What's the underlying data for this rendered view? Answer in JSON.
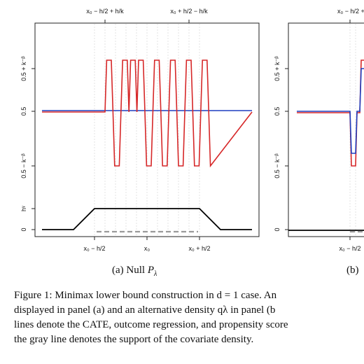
{
  "panel_a": {
    "top_ticks": [
      "x₀ − h/2 + h/k",
      "x₀ + h/2 − h/k"
    ],
    "y_ticks": [
      "0.5 + k⁻ᵝ",
      "0.5",
      "0.5 − k⁻ᵝ",
      "hᵞ",
      "0"
    ],
    "x_ticks": [
      "x₀ − h/2",
      "x₀",
      "x₀ + h/2"
    ],
    "caption_prefix": "(a) Null ",
    "caption_symbol": "P",
    "caption_sub": "λ"
  },
  "panel_b": {
    "top_ticks": [
      "x₀ − h/2 +"
    ],
    "y_ticks": [
      "0.5 + k⁻ᵝ",
      "0.5",
      "0.5 − k⁻ᵝ",
      "0"
    ],
    "x_ticks": [
      "x₀ − h/2"
    ],
    "caption_prefix": "(b)"
  },
  "caption": {
    "line1": "Figure 1: Minimax lower bound construction in d = 1 case.  An",
    "line2": "displayed in panel (a) and an alternative density qλ in panel (b",
    "line3": "lines denote the CATE, outcome regression, and propensity score",
    "line4": "the gray line denotes the support of the covariate density."
  },
  "colors": {
    "red": "#d62728",
    "blue": "#1f3fbf",
    "black": "#000000",
    "gray": "#9a9a9a",
    "grid": "#e3e3e3"
  },
  "chart_data": [
    {
      "type": "line",
      "panel": "a",
      "series": [
        {
          "color": "red",
          "x": [
            0,
            0.3,
            0.308,
            0.33,
            0.338,
            0.346,
            0.368,
            0.376,
            0.384,
            0.406,
            0.414,
            0.422,
            0.444,
            0.452,
            0.46,
            0.482,
            0.49,
            0.498,
            0.52,
            0.528,
            0.536,
            0.558,
            0.566,
            0.574,
            0.596,
            0.604,
            0.612,
            0.634,
            0.642,
            0.65,
            0.672,
            0.68,
            0.688,
            0.71,
            0.718,
            0.726,
            0.748,
            0.756,
            0.764,
            0.786,
            0.794,
            0.802,
            1
          ],
          "y": [
            0.5,
            0.5,
            0.6,
            0.6,
            0.5,
            0.4,
            0.4,
            0.5,
            0.6,
            0.6,
            0.5,
            0.6,
            0.6,
            0.5,
            0.6,
            0.6,
            0.5,
            0.4,
            0.4,
            0.5,
            0.6,
            0.6,
            0.5,
            0.4,
            0.4,
            0.5,
            0.6,
            0.6,
            0.5,
            0.4,
            0.4,
            0.5,
            0.6,
            0.6,
            0.5,
            0.4,
            0.4,
            0.5,
            0.6,
            0.6,
            0.5,
            0.4,
            0.5
          ]
        },
        {
          "color": "blue",
          "x": [
            0,
            1
          ],
          "y": [
            0.5,
            0.5
          ]
        },
        {
          "color": "black",
          "x": [
            0,
            0.15,
            0.25,
            0.75,
            0.85,
            1
          ],
          "y": [
            0,
            0,
            0.1,
            0.1,
            0,
            0
          ]
        }
      ]
    }
  ]
}
